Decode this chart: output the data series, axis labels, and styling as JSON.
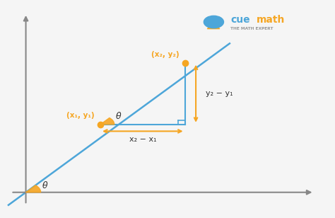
{
  "bg_color": "#f5f5f5",
  "line_color": "#4da6d9",
  "orange_color": "#f5a623",
  "dark_color": "#333333",
  "axis_color": "#888888",
  "point1": [
    1.5,
    2.2
  ],
  "point2": [
    3.2,
    4.2
  ],
  "theta_label": "θ",
  "label_p1": "(x₁, y₁)",
  "label_p2": "(x₂, y₂)",
  "label_dx": "x₂ − x₁",
  "label_dy": "y₂ − y₁",
  "cue_color": "#4da6d9",
  "math_color": "#f5a623",
  "sub_text": "THE MATH EXPERT",
  "sub_color": "#999999"
}
